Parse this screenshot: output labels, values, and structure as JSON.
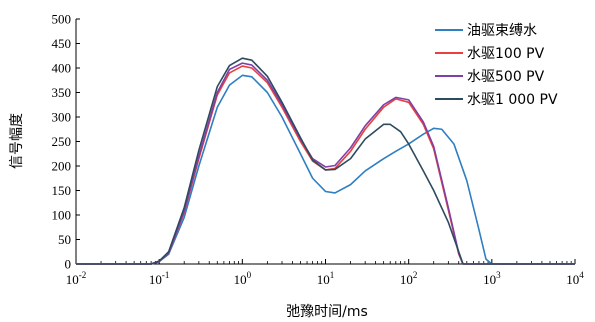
{
  "chart_data": {
    "type": "line",
    "title": "",
    "xlabel": "弛豫时间/ms",
    "ylabel": "信号幅度",
    "xscale": "log",
    "xlim": [
      0.01,
      10000
    ],
    "ylim": [
      0,
      500
    ],
    "x_ticks": [
      {
        "base": "10",
        "exp": "-2"
      },
      {
        "base": "10",
        "exp": "-1"
      },
      {
        "base": "10",
        "exp": "0"
      },
      {
        "base": "10",
        "exp": "1"
      },
      {
        "base": "10",
        "exp": "2"
      },
      {
        "base": "10",
        "exp": "3"
      },
      {
        "base": "10",
        "exp": "4"
      }
    ],
    "y_ticks": [
      "0",
      "50",
      "100",
      "150",
      "200",
      "250",
      "300",
      "350",
      "400",
      "450",
      "500"
    ],
    "grid": false,
    "legend_position": "top-right",
    "series": [
      {
        "name": "油驱束缚水",
        "color": "#2f7fc1",
        "points": [
          [
            0.01,
            0
          ],
          [
            0.08,
            0
          ],
          [
            0.1,
            5
          ],
          [
            0.13,
            20
          ],
          [
            0.2,
            95
          ],
          [
            0.3,
            200
          ],
          [
            0.5,
            320
          ],
          [
            0.7,
            365
          ],
          [
            1,
            385
          ],
          [
            1.3,
            382
          ],
          [
            2,
            350
          ],
          [
            3,
            300
          ],
          [
            5,
            225
          ],
          [
            7,
            175
          ],
          [
            10,
            148
          ],
          [
            13,
            145
          ],
          [
            20,
            162
          ],
          [
            30,
            190
          ],
          [
            50,
            215
          ],
          [
            70,
            230
          ],
          [
            100,
            245
          ],
          [
            150,
            265
          ],
          [
            200,
            277
          ],
          [
            250,
            275
          ],
          [
            350,
            245
          ],
          [
            500,
            170
          ],
          [
            700,
            70
          ],
          [
            850,
            10
          ],
          [
            1000,
            0
          ],
          [
            10000,
            0
          ]
        ]
      },
      {
        "name": "水驱100 PV",
        "color": "#e8403f",
        "points": [
          [
            0.01,
            0
          ],
          [
            0.08,
            0
          ],
          [
            0.1,
            5
          ],
          [
            0.13,
            22
          ],
          [
            0.2,
            105
          ],
          [
            0.3,
            215
          ],
          [
            0.5,
            345
          ],
          [
            0.7,
            390
          ],
          [
            1,
            404
          ],
          [
            1.3,
            400
          ],
          [
            2,
            370
          ],
          [
            3,
            320
          ],
          [
            5,
            250
          ],
          [
            7,
            210
          ],
          [
            10,
            192
          ],
          [
            13,
            195
          ],
          [
            20,
            230
          ],
          [
            30,
            275
          ],
          [
            50,
            320
          ],
          [
            70,
            337
          ],
          [
            100,
            330
          ],
          [
            150,
            285
          ],
          [
            200,
            235
          ],
          [
            300,
            110
          ],
          [
            400,
            20
          ],
          [
            450,
            0
          ],
          [
            10000,
            0
          ]
        ]
      },
      {
        "name": "水驱500 PV",
        "color": "#7f3fa5",
        "points": [
          [
            0.01,
            0
          ],
          [
            0.08,
            0
          ],
          [
            0.1,
            5
          ],
          [
            0.13,
            22
          ],
          [
            0.2,
            108
          ],
          [
            0.3,
            220
          ],
          [
            0.5,
            350
          ],
          [
            0.7,
            397
          ],
          [
            1,
            410
          ],
          [
            1.3,
            406
          ],
          [
            2,
            375
          ],
          [
            3,
            325
          ],
          [
            5,
            255
          ],
          [
            7,
            215
          ],
          [
            10,
            198
          ],
          [
            13,
            201
          ],
          [
            20,
            237
          ],
          [
            30,
            282
          ],
          [
            50,
            325
          ],
          [
            70,
            340
          ],
          [
            100,
            335
          ],
          [
            150,
            290
          ],
          [
            200,
            240
          ],
          [
            300,
            115
          ],
          [
            400,
            22
          ],
          [
            450,
            0
          ],
          [
            10000,
            0
          ]
        ]
      },
      {
        "name": "水驱1 000 PV",
        "color": "#2d4b5e",
        "points": [
          [
            0.01,
            0
          ],
          [
            0.08,
            0
          ],
          [
            0.1,
            6
          ],
          [
            0.13,
            25
          ],
          [
            0.2,
            115
          ],
          [
            0.3,
            232
          ],
          [
            0.5,
            362
          ],
          [
            0.7,
            405
          ],
          [
            1,
            420
          ],
          [
            1.3,
            416
          ],
          [
            2,
            383
          ],
          [
            3,
            330
          ],
          [
            5,
            258
          ],
          [
            7,
            212
          ],
          [
            10,
            192
          ],
          [
            13,
            193
          ],
          [
            20,
            215
          ],
          [
            30,
            255
          ],
          [
            50,
            285
          ],
          [
            60,
            285
          ],
          [
            80,
            270
          ],
          [
            100,
            245
          ],
          [
            150,
            190
          ],
          [
            200,
            150
          ],
          [
            300,
            85
          ],
          [
            400,
            25
          ],
          [
            450,
            0
          ],
          [
            10000,
            0
          ]
        ]
      }
    ]
  }
}
